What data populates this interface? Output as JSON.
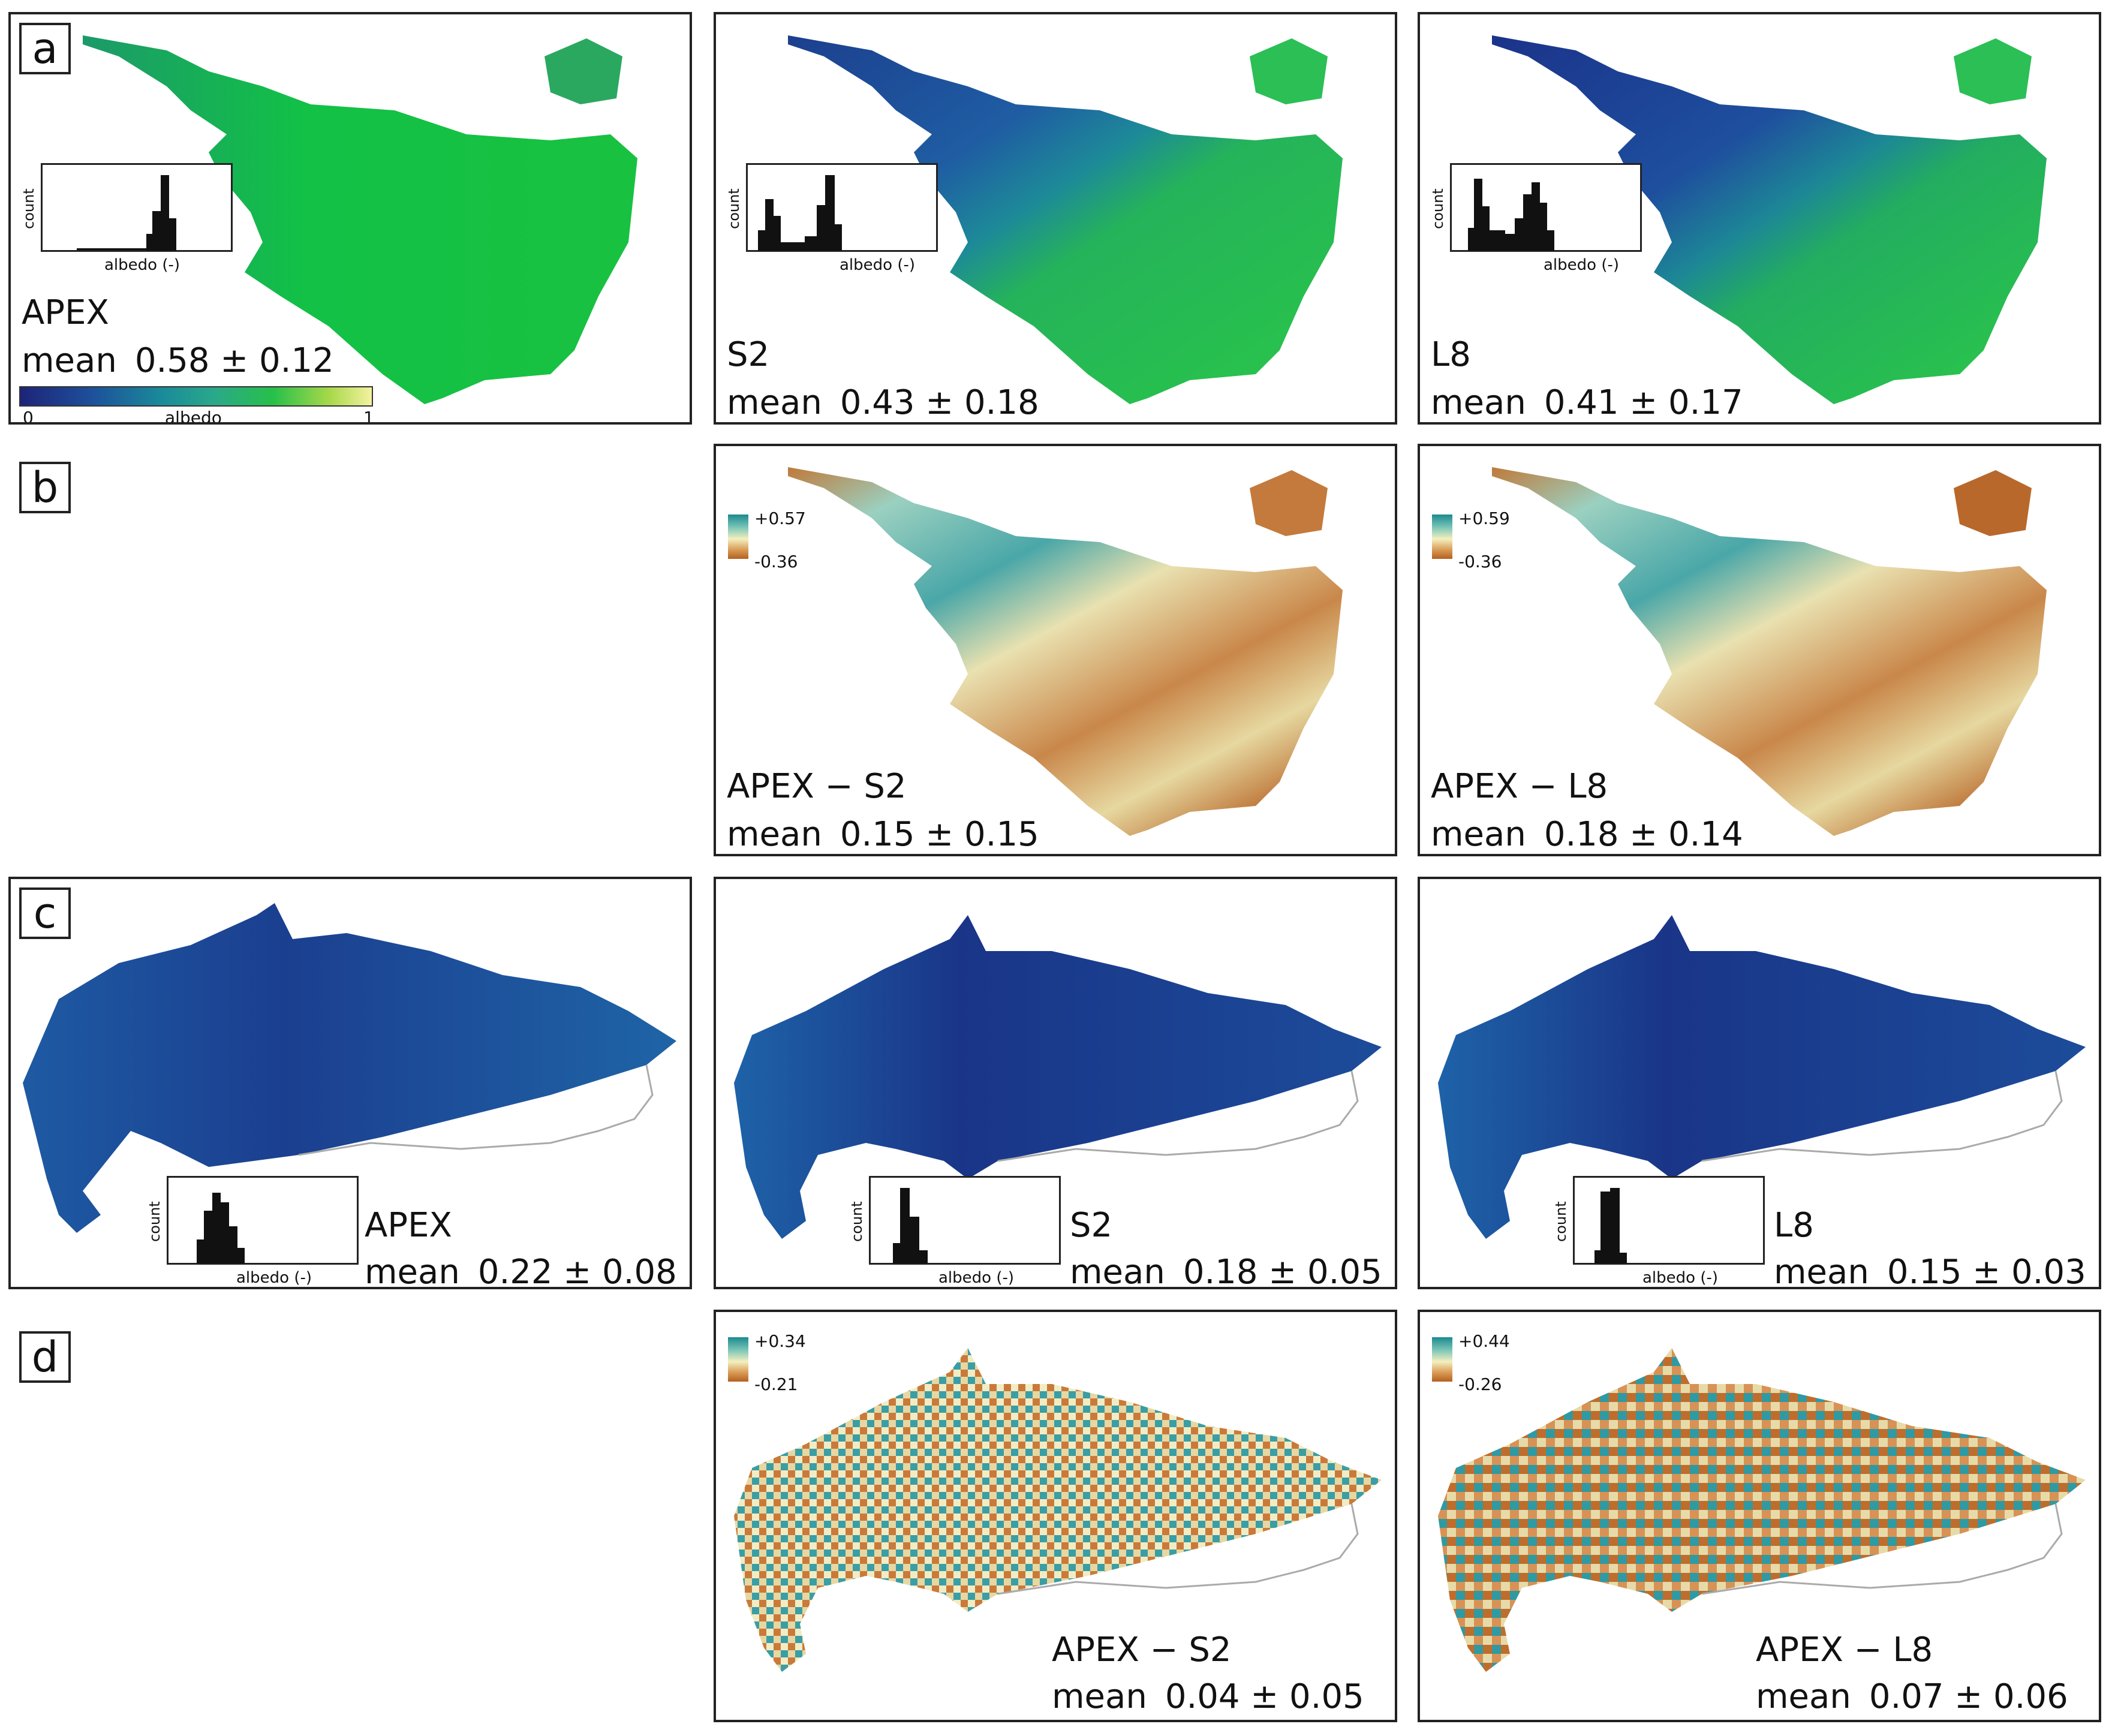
{
  "panel_letters": {
    "a": "a",
    "b": "b",
    "c": "c",
    "d": "d"
  },
  "colorbar": {
    "min": "0",
    "label": "albedo",
    "max": "1",
    "colors": [
      "#1e2478",
      "#1a8a9a",
      "#27c04a",
      "#f4f2a0"
    ]
  },
  "hist_axis": {
    "ylabel": "count",
    "xlabel": "albedo (-)"
  },
  "row_a": {
    "apex": {
      "name": "APEX",
      "mean_label": "mean",
      "value": "0.58 ± 0.12"
    },
    "s2": {
      "name": "S2",
      "mean_label": "mean",
      "value": "0.43 ± 0.18"
    },
    "l8": {
      "name": "L8",
      "mean_label": "mean",
      "value": "0.41 ± 0.17"
    }
  },
  "row_b": {
    "s2": {
      "name": "APEX − S2",
      "mean_label": "mean",
      "value": "0.15 ± 0.15",
      "scale_max": "+0.57",
      "scale_min": "-0.36"
    },
    "l8": {
      "name": "APEX − L8",
      "mean_label": "mean",
      "value": "0.18 ± 0.14",
      "scale_max": "+0.59",
      "scale_min": "-0.36"
    }
  },
  "row_c": {
    "apex": {
      "name": "APEX",
      "mean_label": "mean",
      "value": "0.22 ± 0.08"
    },
    "s2": {
      "name": "S2",
      "mean_label": "mean",
      "value": "0.18 ± 0.05"
    },
    "l8": {
      "name": "L8",
      "mean_label": "mean",
      "value": "0.15 ± 0.03"
    }
  },
  "row_d": {
    "s2": {
      "name": "APEX − S2",
      "mean_label": "mean",
      "value": "0.04 ± 0.05",
      "scale_max": "+0.34",
      "scale_min": "-0.21"
    },
    "l8": {
      "name": "APEX − L8",
      "mean_label": "mean",
      "value": "0.07 ± 0.06",
      "scale_max": "+0.44",
      "scale_min": "-0.26"
    }
  }
}
